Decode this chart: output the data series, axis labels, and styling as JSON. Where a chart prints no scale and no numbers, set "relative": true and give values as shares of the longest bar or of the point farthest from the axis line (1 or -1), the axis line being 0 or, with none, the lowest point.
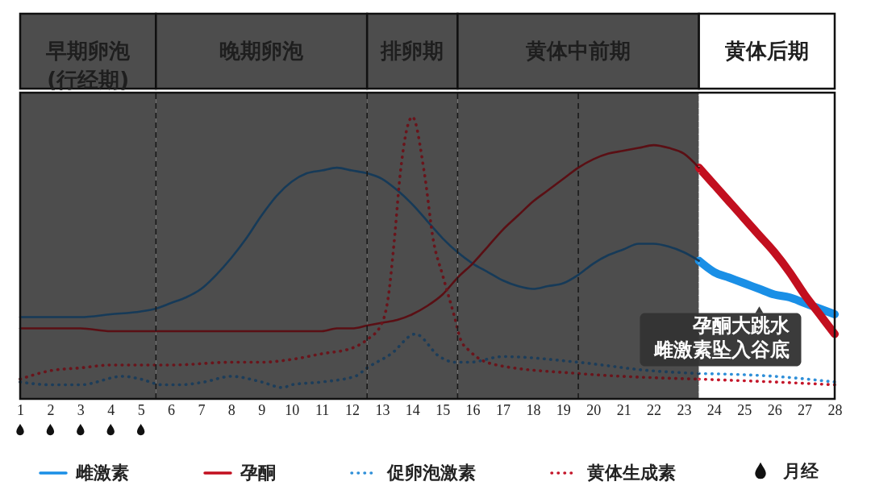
{
  "chart_data": {
    "type": "line",
    "relative": true,
    "xlim": [
      1,
      28
    ],
    "xticks": [
      1,
      2,
      3,
      4,
      5,
      6,
      7,
      8,
      9,
      10,
      11,
      12,
      13,
      14,
      15,
      16,
      17,
      18,
      19,
      20,
      21,
      22,
      23,
      24,
      25,
      26,
      27,
      28
    ],
    "series": [
      {
        "name": "雌激素",
        "color": "#1a8fe6",
        "x": [
          23.5,
          24,
          24.5,
          25,
          25.5,
          26,
          26.5,
          27,
          27.5,
          28
        ],
        "values": [
          0.49,
          0.45,
          0.43,
          0.41,
          0.39,
          0.37,
          0.36,
          0.34,
          0.32,
          0.3
        ]
      },
      {
        "name": "孕酮",
        "color": "#c20f1f",
        "x": [
          23.5,
          24,
          24.5,
          25,
          25.5,
          26,
          26.5,
          27,
          27.5,
          28
        ],
        "values": [
          0.82,
          0.76,
          0.7,
          0.64,
          0.58,
          0.52,
          0.45,
          0.37,
          0.3,
          0.23
        ]
      },
      {
        "name": "促卵泡激素",
        "color": "#2f8fd8",
        "line_style": "dotted",
        "x": [
          23.5,
          26,
          28
        ],
        "values": [
          0.09,
          0.08,
          0.06
        ]
      },
      {
        "name": "黄体生成素",
        "color": "#c4162a",
        "line_style": "dotted",
        "x": [
          23.5,
          26,
          28
        ],
        "values": [
          0.07,
          0.06,
          0.05
        ]
      },
      {
        "name": "月经",
        "type": "scatter",
        "color": "#111111",
        "x": [
          1,
          2,
          3,
          4,
          5
        ],
        "values": [
          -0.11,
          -0.11,
          -0.11,
          -0.11,
          -0.11
        ]
      },
      {
        "color": "#163a58",
        "x": [
          1,
          2,
          3,
          4,
          5,
          5.5,
          6,
          6.5,
          7,
          7.5,
          8,
          8.5,
          9,
          9.5,
          10,
          10.5,
          11,
          11.5,
          12,
          12.5,
          13,
          13.5,
          14,
          14.5,
          15,
          15.5,
          16,
          16.5,
          17,
          17.5,
          18,
          18.5,
          19,
          19.5,
          20,
          20.5,
          21,
          21.5,
          22,
          22.5,
          23,
          23.5
        ],
        "values": [
          0.29,
          0.29,
          0.29,
          0.3,
          0.31,
          0.32,
          0.34,
          0.36,
          0.39,
          0.44,
          0.5,
          0.57,
          0.65,
          0.72,
          0.77,
          0.8,
          0.81,
          0.82,
          0.81,
          0.8,
          0.78,
          0.74,
          0.69,
          0.63,
          0.57,
          0.52,
          0.48,
          0.45,
          0.42,
          0.4,
          0.39,
          0.4,
          0.41,
          0.44,
          0.48,
          0.51,
          0.53,
          0.55,
          0.55,
          0.54,
          0.52,
          0.49
        ]
      },
      {
        "color": "#5a0f14",
        "x": [
          1,
          2,
          3,
          4,
          5,
          6,
          7,
          8,
          9,
          10,
          11,
          11.5,
          12,
          12.5,
          13,
          13.5,
          14,
          14.5,
          15,
          15.5,
          16,
          16.5,
          17,
          17.5,
          18,
          18.5,
          19,
          19.5,
          20,
          20.5,
          21,
          21.5,
          22,
          22.5,
          23,
          23.5
        ],
        "values": [
          0.25,
          0.25,
          0.25,
          0.24,
          0.24,
          0.24,
          0.24,
          0.24,
          0.24,
          0.24,
          0.24,
          0.25,
          0.25,
          0.26,
          0.27,
          0.28,
          0.3,
          0.33,
          0.37,
          0.43,
          0.48,
          0.54,
          0.6,
          0.65,
          0.7,
          0.74,
          0.78,
          0.82,
          0.85,
          0.87,
          0.88,
          0.89,
          0.9,
          0.89,
          0.87,
          0.82
        ]
      },
      {
        "color": "#1c3d5a",
        "line_style": "dotted",
        "x": [
          1,
          2,
          3,
          4.4,
          5,
          5.7,
          6.3,
          7.1,
          8,
          9,
          9.7,
          10,
          11,
          12.1,
          12.5,
          13.3,
          14.1,
          14.9,
          15.4,
          15.9,
          17,
          19.5,
          21.9,
          23.5
        ],
        "values": [
          0.06,
          0.05,
          0.05,
          0.08,
          0.07,
          0.05,
          0.05,
          0.06,
          0.08,
          0.06,
          0.04,
          0.05,
          0.06,
          0.08,
          0.11,
          0.16,
          0.23,
          0.15,
          0.13,
          0.13,
          0.15,
          0.13,
          0.1,
          0.09
        ]
      },
      {
        "color": "#6a141b",
        "line_style": "dotted",
        "x": [
          1,
          2,
          3,
          4,
          5,
          6,
          8,
          9,
          10,
          11,
          12,
          12.5,
          13,
          13.2,
          13.4,
          13.6,
          14,
          14.4,
          14.7,
          15,
          15.4,
          15.6,
          15.9,
          16.8,
          19.5,
          23.5
        ],
        "values": [
          0.07,
          0.1,
          0.11,
          0.12,
          0.12,
          0.12,
          0.13,
          0.13,
          0.14,
          0.16,
          0.18,
          0.21,
          0.27,
          0.36,
          0.56,
          0.8,
          1,
          0.8,
          0.56,
          0.44,
          0.29,
          0.21,
          0.17,
          0.12,
          0.09,
          0.07
        ]
      }
    ],
    "bands": [
      {
        "axis": "x",
        "from": 1,
        "to": 5.5,
        "label": "早期卵泡\n(行经期)",
        "color": "#4d4d4d"
      },
      {
        "axis": "x",
        "from": 5.5,
        "to": 12.5,
        "label": "晚期卵泡",
        "color": "#4d4d4d"
      },
      {
        "axis": "x",
        "from": 12.5,
        "to": 15.5,
        "label": "排卵期",
        "color": "#4d4d4d"
      },
      {
        "axis": "x",
        "from": 15.5,
        "to": 23.5,
        "label": "黄体中前期",
        "color": "#4d4d4d"
      },
      {
        "axis": "x",
        "from": 23.5,
        "to": 28,
        "label": "黄体后期",
        "color": "#ffffff"
      }
    ],
    "ref_lines": [
      {
        "axis": "x",
        "value": 5.5,
        "color": "#1a1a1a",
        "line_style": "dashed"
      },
      {
        "axis": "x",
        "value": 12.5,
        "color": "#1a1a1a",
        "line_style": "dashed"
      },
      {
        "axis": "x",
        "value": 15.5,
        "color": "#1a1a1a",
        "line_style": "dashed"
      },
      {
        "axis": "x",
        "value": 19.5,
        "color": "#1a1a1a",
        "line_style": "dashed"
      },
      {
        "axis": "x",
        "value": 23.5,
        "color": "#ffffff",
        "line_style": "dotted"
      }
    ],
    "annotations": [
      {
        "text": "孕酮大跳水",
        "x": 25.5,
        "y": 0.39
      },
      {
        "text": "雌激素坠入谷底",
        "x": 25.5,
        "y": 0.39
      }
    ],
    "legend": "bottom"
  }
}
